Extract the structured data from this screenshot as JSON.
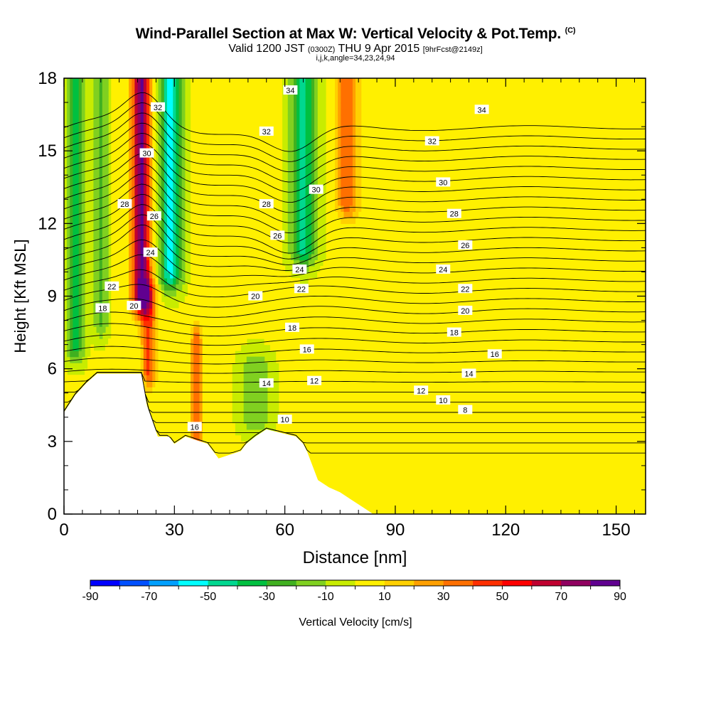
{
  "header": {
    "title": "Wind-Parallel Section at Max W: Vertical Velocity & Pot.Temp.",
    "title_tag": "(C)",
    "valid_prefix": "Valid 1200 JST",
    "valid_utc": "(0300Z)",
    "valid_date": "THU 9 Apr 2015",
    "forecast": "[9hrFcst@2149z]",
    "indices": "i,j,k,angle=34,23,24,94"
  },
  "colors": {
    "background": "#ffffff",
    "terrain": "#ffffff",
    "contour": "#000000",
    "levels": [
      "#0000ff",
      "#0050ff",
      "#00a0ff",
      "#00ffff",
      "#00d890",
      "#00c040",
      "#40b020",
      "#80d020",
      "#c8ec00",
      "#fff000",
      "#ffd000",
      "#ffa000",
      "#ff7000",
      "#ff3000",
      "#ff0000",
      "#c00030",
      "#900060",
      "#600090"
    ]
  },
  "chart_data": {
    "type": "heatmap",
    "xlabel": "Distance [nm]",
    "ylabel": "Height [Kft MSL]",
    "xlim": [
      0,
      158
    ],
    "ylim": [
      0,
      18
    ],
    "xticks": [
      0,
      30,
      60,
      90,
      120,
      150
    ],
    "yticks": [
      0,
      3,
      6,
      9,
      12,
      15,
      18
    ],
    "colorbar": {
      "label": "Vertical Velocity [cm/s]",
      "bounds": [
        -90,
        90
      ],
      "step": 10,
      "ticks": [
        -90,
        -70,
        -50,
        -30,
        -10,
        10,
        30,
        50,
        70,
        90
      ]
    },
    "vertical_velocity_features": [
      {
        "x": 3,
        "w": 2.5,
        "zmin": 7,
        "zmax": 18,
        "value": -35
      },
      {
        "x": 10,
        "w": 2,
        "zmin": 8,
        "zmax": 18,
        "value": -25
      },
      {
        "x": 21,
        "w": 2.5,
        "zmin": 9,
        "zmax": 18,
        "value": 80
      },
      {
        "x": 23,
        "w": 2,
        "zmin": 6,
        "zmax": 9,
        "value": 40
      },
      {
        "x": 29,
        "w": 3,
        "zmin": 10,
        "zmax": 18,
        "value": -55
      },
      {
        "x": 36,
        "w": 1.5,
        "zmin": 3,
        "zmax": 7,
        "value": 40
      },
      {
        "x": 65,
        "w": 3.5,
        "zmin": 11,
        "zmax": 18,
        "value": -45
      },
      {
        "x": 77,
        "w": 3,
        "zmin": 13,
        "zmax": 18,
        "value": 38
      },
      {
        "x": 52,
        "w": 4,
        "zmin": 4,
        "zmax": 6,
        "value": -22
      },
      {
        "x": 125,
        "w": 6,
        "zmin": 0.5,
        "zmax": 4,
        "value": 8
      }
    ],
    "terrain": [
      {
        "x": 0,
        "height": 4.2
      },
      {
        "x": 3,
        "height": 4.9
      },
      {
        "x": 6,
        "height": 5.4
      },
      {
        "x": 9,
        "height": 5.8
      },
      {
        "x": 15,
        "height": 5.8
      },
      {
        "x": 21,
        "height": 5.8
      },
      {
        "x": 22.5,
        "height": 4.5
      },
      {
        "x": 25.5,
        "height": 3.2
      },
      {
        "x": 28.5,
        "height": 3.2
      },
      {
        "x": 30,
        "height": 2.9
      },
      {
        "x": 33,
        "height": 3.2
      },
      {
        "x": 39,
        "height": 2.9
      },
      {
        "x": 42,
        "height": 2.3
      },
      {
        "x": 48,
        "height": 2.6
      },
      {
        "x": 49.5,
        "height": 2.9
      },
      {
        "x": 52,
        "height": 3.2
      },
      {
        "x": 55,
        "height": 3.5
      },
      {
        "x": 63,
        "height": 3.2
      },
      {
        "x": 65,
        "height": 2.9
      },
      {
        "x": 66,
        "height": 2.6
      },
      {
        "x": 69,
        "height": 1.4
      },
      {
        "x": 72,
        "height": 1.1
      },
      {
        "x": 75,
        "height": 0.9
      },
      {
        "x": 78,
        "height": 0.6
      },
      {
        "x": 81,
        "height": 0.3
      },
      {
        "x": 84,
        "height": 0.0
      },
      {
        "x": 158,
        "height": 0.0
      }
    ],
    "potential_temperature": {
      "interval": 1,
      "labels": [
        {
          "value": 34,
          "x": 61.5,
          "z": 17.5
        },
        {
          "value": 34,
          "x": 113.5,
          "z": 16.7
        },
        {
          "value": 32,
          "x": 25.5,
          "z": 16.8
        },
        {
          "value": 32,
          "x": 55,
          "z": 15.8
        },
        {
          "value": 32,
          "x": 100,
          "z": 15.4
        },
        {
          "value": 30,
          "x": 22.5,
          "z": 14.9
        },
        {
          "value": 30,
          "x": 68.5,
          "z": 13.4
        },
        {
          "value": 30,
          "x": 103,
          "z": 13.7
        },
        {
          "value": 28,
          "x": 16.5,
          "z": 12.8
        },
        {
          "value": 28,
          "x": 55,
          "z": 12.8
        },
        {
          "value": 28,
          "x": 106,
          "z": 12.4
        },
        {
          "value": 26,
          "x": 24.5,
          "z": 12.3
        },
        {
          "value": 26,
          "x": 58,
          "z": 11.5
        },
        {
          "value": 26,
          "x": 109,
          "z": 11.1
        },
        {
          "value": 24,
          "x": 23.5,
          "z": 10.8
        },
        {
          "value": 24,
          "x": 64,
          "z": 10.1
        },
        {
          "value": 24,
          "x": 103,
          "z": 10.1
        },
        {
          "value": 22,
          "x": 13,
          "z": 9.4
        },
        {
          "value": 22,
          "x": 64.5,
          "z": 9.3
        },
        {
          "value": 22,
          "x": 109,
          "z": 9.3
        },
        {
          "value": 20,
          "x": 19,
          "z": 8.6
        },
        {
          "value": 20,
          "x": 52,
          "z": 9.0
        },
        {
          "value": 20,
          "x": 109,
          "z": 8.4
        },
        {
          "value": 18,
          "x": 10.5,
          "z": 8.5
        },
        {
          "value": 18,
          "x": 62,
          "z": 7.7
        },
        {
          "value": 18,
          "x": 106,
          "z": 7.5
        },
        {
          "value": 16,
          "x": 66,
          "z": 6.8
        },
        {
          "value": 16,
          "x": 117,
          "z": 6.6
        },
        {
          "value": 16,
          "x": 35.5,
          "z": 3.6
        },
        {
          "value": 14,
          "x": 55,
          "z": 5.4
        },
        {
          "value": 14,
          "x": 110,
          "z": 5.8
        },
        {
          "value": 12,
          "x": 68,
          "z": 5.5
        },
        {
          "value": 12,
          "x": 97,
          "z": 5.1
        },
        {
          "value": 10,
          "x": 60,
          "z": 3.9
        },
        {
          "value": 10,
          "x": 103,
          "z": 4.7
        },
        {
          "value": 8,
          "x": 109,
          "z": 4.3
        }
      ]
    }
  }
}
